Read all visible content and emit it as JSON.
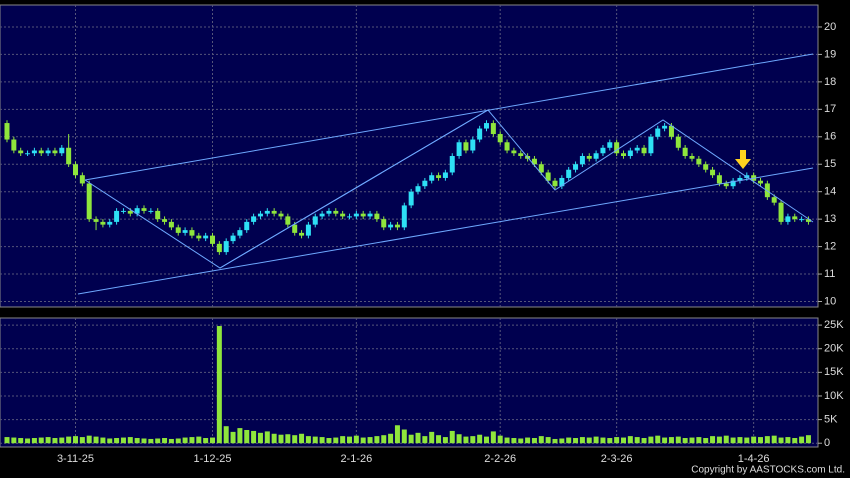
{
  "chart_data": [
    {
      "type": "candlestick",
      "up_color": "#2ee0f5",
      "down_color": "#8fe63c",
      "grid": true,
      "ylim": [
        9.8,
        20.8
      ],
      "yticks": [
        10,
        11,
        12,
        13,
        14,
        15,
        16,
        17,
        18,
        19,
        20
      ],
      "open": [
        16.5,
        15.9,
        15.5,
        15.4,
        15.4,
        15.5,
        15.4,
        15.5,
        15.4,
        15.6,
        15.0,
        14.6,
        14.3,
        13.0,
        12.9,
        12.8,
        12.9,
        13.3,
        13.3,
        13.2,
        13.4,
        13.3,
        13.3,
        13.0,
        12.9,
        12.7,
        12.5,
        12.6,
        12.4,
        12.3,
        12.4,
        12.1,
        11.8,
        12.2,
        12.4,
        12.6,
        12.9,
        13.1,
        13.2,
        13.3,
        13.2,
        13.1,
        12.8,
        12.5,
        12.4,
        12.8,
        13.1,
        13.2,
        13.3,
        13.2,
        13.1,
        13.1,
        13.2,
        13.1,
        13.2,
        13.0,
        12.7,
        12.8,
        12.7,
        13.5,
        14.0,
        14.2,
        14.4,
        14.6,
        14.5,
        14.7,
        15.3,
        15.8,
        15.5,
        15.9,
        16.3,
        16.5,
        16.1,
        15.8,
        15.5,
        15.4,
        15.3,
        15.2,
        15.0,
        14.7,
        14.4,
        14.2,
        14.5,
        14.8,
        15.0,
        15.3,
        15.2,
        15.4,
        15.6,
        15.8,
        15.4,
        15.3,
        15.5,
        15.6,
        15.4,
        16.0,
        16.3,
        16.4,
        16.0,
        15.6,
        15.3,
        15.2,
        15.0,
        14.8,
        14.6,
        14.3,
        14.2,
        14.4,
        14.5,
        14.6,
        14.4,
        14.3,
        13.8,
        13.6,
        12.9,
        13.1,
        13.0,
        13.0
      ],
      "high": [
        16.6,
        16.0,
        15.6,
        15.5,
        15.6,
        15.6,
        15.6,
        15.6,
        15.7,
        16.1,
        15.1,
        14.7,
        14.4,
        13.1,
        13.0,
        13.0,
        13.4,
        13.4,
        13.4,
        13.5,
        13.5,
        13.4,
        13.4,
        13.1,
        13.0,
        12.8,
        12.7,
        12.7,
        12.5,
        12.5,
        12.5,
        12.2,
        12.3,
        12.5,
        12.7,
        13.0,
        13.2,
        13.3,
        13.4,
        13.4,
        13.3,
        13.2,
        12.9,
        12.6,
        12.9,
        13.2,
        13.3,
        13.4,
        13.4,
        13.3,
        13.2,
        13.3,
        13.3,
        13.3,
        13.3,
        13.1,
        12.9,
        12.9,
        13.6,
        14.1,
        14.3,
        14.5,
        14.7,
        14.7,
        14.8,
        15.4,
        15.9,
        15.9,
        16.0,
        16.4,
        16.6,
        16.6,
        16.2,
        15.9,
        15.6,
        15.5,
        15.4,
        15.3,
        15.1,
        14.8,
        14.5,
        14.6,
        14.9,
        15.1,
        15.4,
        15.4,
        15.5,
        15.7,
        15.9,
        15.9,
        15.5,
        15.6,
        15.7,
        15.7,
        16.1,
        16.4,
        16.5,
        16.5,
        16.1,
        15.7,
        15.4,
        15.3,
        15.1,
        14.9,
        14.7,
        14.4,
        14.5,
        14.6,
        14.7,
        14.7,
        14.5,
        14.4,
        13.9,
        13.7,
        13.2,
        13.2,
        13.1,
        13.1
      ],
      "low": [
        15.8,
        15.4,
        15.3,
        15.3,
        15.3,
        15.3,
        15.3,
        15.3,
        15.3,
        14.9,
        14.5,
        14.2,
        12.9,
        12.6,
        12.7,
        12.7,
        12.8,
        13.2,
        13.1,
        13.1,
        13.2,
        13.2,
        12.9,
        12.8,
        12.6,
        12.4,
        12.4,
        12.3,
        12.2,
        12.2,
        12.0,
        11.7,
        11.7,
        12.1,
        12.3,
        12.5,
        12.8,
        13.0,
        13.1,
        13.1,
        13.0,
        12.7,
        12.4,
        12.3,
        12.3,
        12.7,
        13.0,
        13.1,
        13.1,
        13.0,
        13.0,
        13.0,
        13.0,
        13.0,
        12.9,
        12.6,
        12.6,
        12.6,
        12.6,
        13.4,
        13.9,
        14.1,
        14.3,
        14.4,
        14.4,
        14.6,
        15.2,
        15.4,
        15.4,
        15.8,
        16.2,
        16.0,
        15.7,
        15.4,
        15.3,
        15.2,
        15.1,
        14.9,
        14.6,
        14.3,
        14.1,
        14.1,
        14.4,
        14.7,
        14.9,
        15.1,
        15.1,
        15.3,
        15.5,
        15.3,
        15.2,
        15.2,
        15.4,
        15.3,
        15.3,
        15.9,
        16.2,
        15.9,
        15.5,
        15.2,
        15.1,
        14.9,
        14.7,
        14.5,
        14.2,
        14.1,
        14.1,
        14.3,
        14.4,
        14.3,
        14.2,
        13.7,
        13.5,
        12.8,
        12.8,
        12.9,
        12.9,
        12.8
      ],
      "close": [
        15.9,
        15.5,
        15.4,
        15.4,
        15.5,
        15.4,
        15.5,
        15.4,
        15.6,
        15.0,
        14.6,
        14.3,
        13.0,
        12.9,
        12.8,
        12.9,
        13.3,
        13.3,
        13.2,
        13.4,
        13.3,
        13.3,
        13.0,
        12.9,
        12.7,
        12.5,
        12.6,
        12.4,
        12.3,
        12.4,
        12.1,
        11.8,
        12.2,
        12.4,
        12.6,
        12.9,
        13.1,
        13.2,
        13.3,
        13.2,
        13.1,
        12.8,
        12.5,
        12.4,
        12.8,
        13.1,
        13.2,
        13.3,
        13.2,
        13.1,
        13.1,
        13.2,
        13.1,
        13.2,
        13.0,
        12.7,
        12.8,
        12.7,
        13.5,
        14.0,
        14.2,
        14.4,
        14.6,
        14.5,
        14.7,
        15.3,
        15.8,
        15.5,
        15.9,
        16.3,
        16.5,
        16.1,
        15.8,
        15.5,
        15.4,
        15.3,
        15.2,
        15.0,
        14.7,
        14.4,
        14.2,
        14.5,
        14.8,
        15.0,
        15.3,
        15.2,
        15.4,
        15.6,
        15.8,
        15.4,
        15.3,
        15.5,
        15.6,
        15.4,
        16.0,
        16.3,
        16.4,
        16.0,
        15.6,
        15.3,
        15.2,
        15.0,
        14.8,
        14.6,
        14.3,
        14.2,
        14.4,
        14.5,
        14.6,
        14.4,
        14.3,
        13.8,
        13.6,
        12.9,
        13.1,
        13.0,
        13.0,
        12.9
      ]
    },
    {
      "type": "bar",
      "color": "#8fe63c",
      "grid": true,
      "ylim": [
        -800,
        26500
      ],
      "yticks": [
        {
          "value": 0,
          "label": "0"
        },
        {
          "value": 5000,
          "label": "5K"
        },
        {
          "value": 10000,
          "label": "10K"
        },
        {
          "value": 15000,
          "label": "15K"
        },
        {
          "value": 20000,
          "label": "20K"
        },
        {
          "value": 25000,
          "label": "25K"
        }
      ],
      "categories": [
        null,
        null,
        null,
        null,
        null,
        null,
        null,
        null,
        null,
        null,
        "3-11-25",
        null,
        null,
        null,
        null,
        null,
        null,
        null,
        null,
        null,
        null,
        null,
        null,
        null,
        null,
        null,
        null,
        null,
        null,
        null,
        "1-12-25",
        null,
        null,
        null,
        null,
        null,
        null,
        null,
        null,
        null,
        null,
        null,
        null,
        null,
        null,
        null,
        null,
        null,
        null,
        null,
        null,
        "2-1-26",
        null,
        null,
        null,
        null,
        null,
        null,
        null,
        null,
        null,
        null,
        null,
        null,
        null,
        null,
        null,
        null,
        null,
        null,
        null,
        null,
        "2-2-26",
        null,
        null,
        null,
        null,
        null,
        null,
        null,
        null,
        null,
        null,
        null,
        null,
        null,
        null,
        null,
        null,
        "2-3-26",
        null,
        null,
        null,
        null,
        null,
        null,
        null,
        null,
        null,
        null,
        null,
        null,
        null,
        null,
        null,
        null,
        null,
        null,
        null,
        "1-4-26",
        null,
        null,
        null,
        null,
        null,
        null,
        null,
        null
      ],
      "values": [
        1300,
        1200,
        1100,
        1000,
        1100,
        1200,
        1300,
        1100,
        1200,
        1400,
        1500,
        1300,
        1600,
        1400,
        1200,
        1000,
        1100,
        1200,
        1300,
        1100,
        1000,
        900,
        1000,
        1100,
        900,
        1000,
        1200,
        1300,
        1400,
        1100,
        1200,
        24800,
        3600,
        2400,
        3200,
        2800,
        2600,
        2200,
        2500,
        2000,
        1800,
        1900,
        1700,
        2000,
        1500,
        1400,
        1300,
        1100,
        1200,
        1500,
        1400,
        1600,
        1200,
        1300,
        1500,
        1700,
        2000,
        3800,
        2900,
        1800,
        2200,
        1500,
        2400,
        1700,
        1300,
        2600,
        1900,
        1400,
        1500,
        1800,
        1400,
        2500,
        1600,
        1200,
        1100,
        1000,
        1200,
        1100,
        1500,
        1300,
        900,
        1000,
        1200,
        1100,
        1300,
        1200,
        1400,
        1200,
        1100,
        1300,
        1200,
        1500,
        1300,
        1100,
        1400,
        1600,
        1200,
        1300,
        1400,
        1100,
        1200,
        1300,
        1100,
        1500,
        1400,
        1600,
        1200,
        1300,
        1200,
        1400,
        1300,
        1500,
        1600,
        1200,
        1300,
        1100,
        1400,
        1700
      ]
    }
  ],
  "copyright": "Copyright by AASTOCKS.com Ltd."
}
